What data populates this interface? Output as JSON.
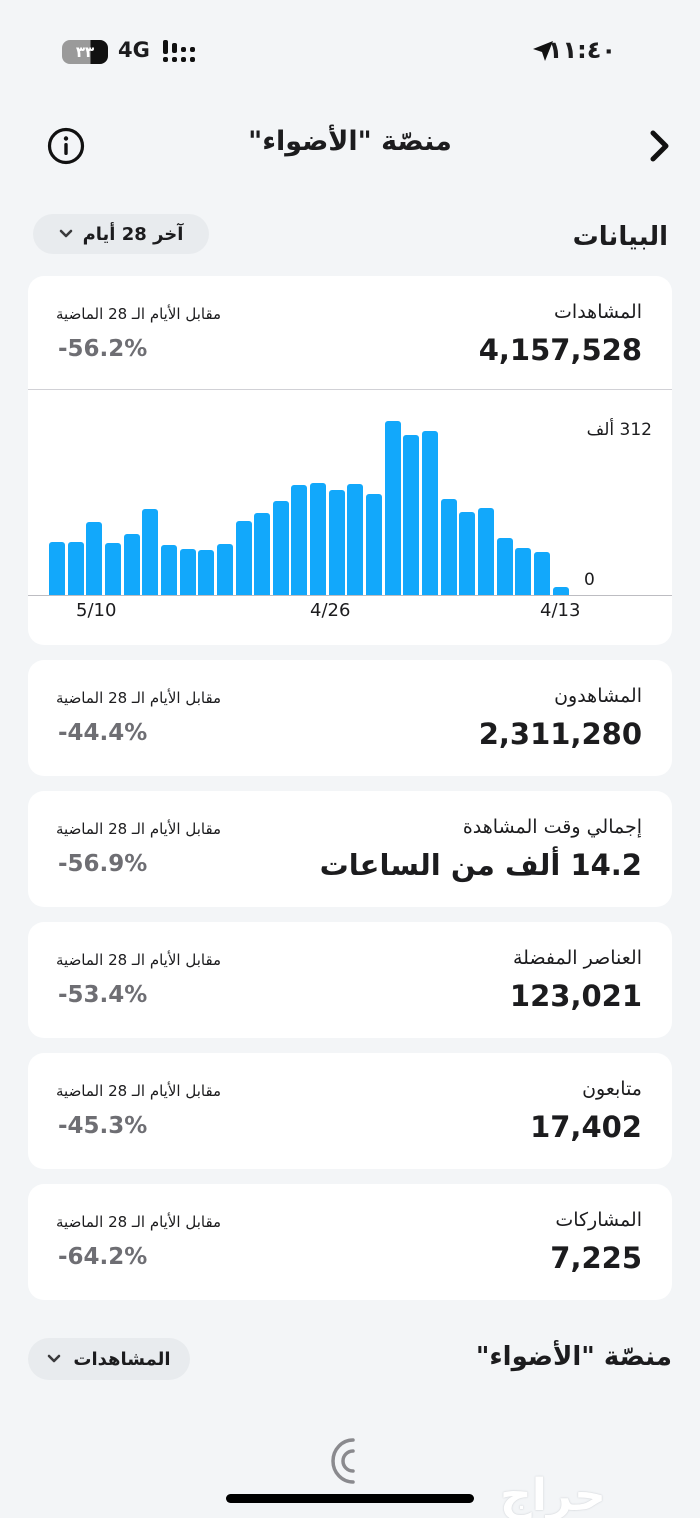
{
  "status_bar": {
    "time": "١١:٤٠",
    "battery": "٣٣",
    "network": "4G",
    "icons": [
      "location-arrow-icon",
      "signal-icon",
      "battery-icon"
    ]
  },
  "nav": {
    "title": "منصّة \"الأضواء\"",
    "back_icon": "chevron-right-icon",
    "info_icon": "info-circle-icon"
  },
  "data_section": {
    "title": "البيانات",
    "period_selector": "آخر 28 أيام"
  },
  "metrics": [
    {
      "label": "المشاهدات",
      "value": "4,157,528",
      "compare_label": "مقابل الأيام الـ 28 الماضية",
      "change": "-56.2%"
    },
    {
      "label": "المشاهدون",
      "value": "2,311,280",
      "compare_label": "مقابل الأيام الـ 28 الماضية",
      "change": "-44.4%"
    },
    {
      "label": "إجمالي وقت المشاهدة",
      "value": "14.2 ألف من الساعات",
      "compare_label": "مقابل الأيام الـ 28 الماضية",
      "change": "-56.9%"
    },
    {
      "label": "العناصر المفضلة",
      "value": "123,021",
      "compare_label": "مقابل الأيام الـ 28 الماضية",
      "change": "-53.4%"
    },
    {
      "label": "متابعون",
      "value": "17,402",
      "compare_label": "مقابل الأيام الـ 28 الماضية",
      "change": "-45.3%"
    },
    {
      "label": "المشاركات",
      "value": "7,225",
      "compare_label": "مقابل الأيام الـ 28 الماضية",
      "change": "-64.2%"
    }
  ],
  "chart": {
    "y_max_label": "312 ألف",
    "y_min_label": "0",
    "x_ticks": [
      {
        "label": "5/10",
        "left": 48
      },
      {
        "label": "4/26",
        "left": 282
      },
      {
        "label": "4/13",
        "left": 512
      }
    ],
    "bar_color": "#12a8fb"
  },
  "chart_data": {
    "type": "bar",
    "title": "المشاهدات",
    "xlabel": "",
    "ylabel": "",
    "ylim": [
      0,
      312
    ],
    "y_unit": "ألف (thousands)",
    "y_tick_labels": [
      "0",
      "312 ألف"
    ],
    "x_tick_labels": [
      "5/10",
      "4/26",
      "4/13"
    ],
    "direction": "right-to-left (oldest on right, newest on left)",
    "grid": false,
    "categories_visual_order_left_to_right": [
      "d28",
      "d27",
      "d26",
      "d25",
      "d24",
      "d23",
      "d22",
      "d21",
      "d20",
      "d19",
      "d18",
      "d17",
      "d16",
      "d15",
      "d14",
      "d13",
      "d12",
      "d11",
      "d10",
      "d9",
      "d8",
      "d7",
      "d6",
      "d5",
      "d4",
      "d3",
      "d2",
      "d1"
    ],
    "values": [
      95,
      95,
      131,
      93,
      109,
      154,
      90,
      82,
      81,
      91,
      133,
      147,
      169,
      197,
      201,
      188,
      199,
      181,
      312,
      287,
      294,
      172,
      149,
      156,
      102,
      84,
      77,
      14
    ]
  },
  "bottom_section": {
    "title": "منصّة \"الأضواء\"",
    "selector": "المشاهدات",
    "loading_icon": "loading-spinner-icon"
  },
  "watermark": "حراج"
}
